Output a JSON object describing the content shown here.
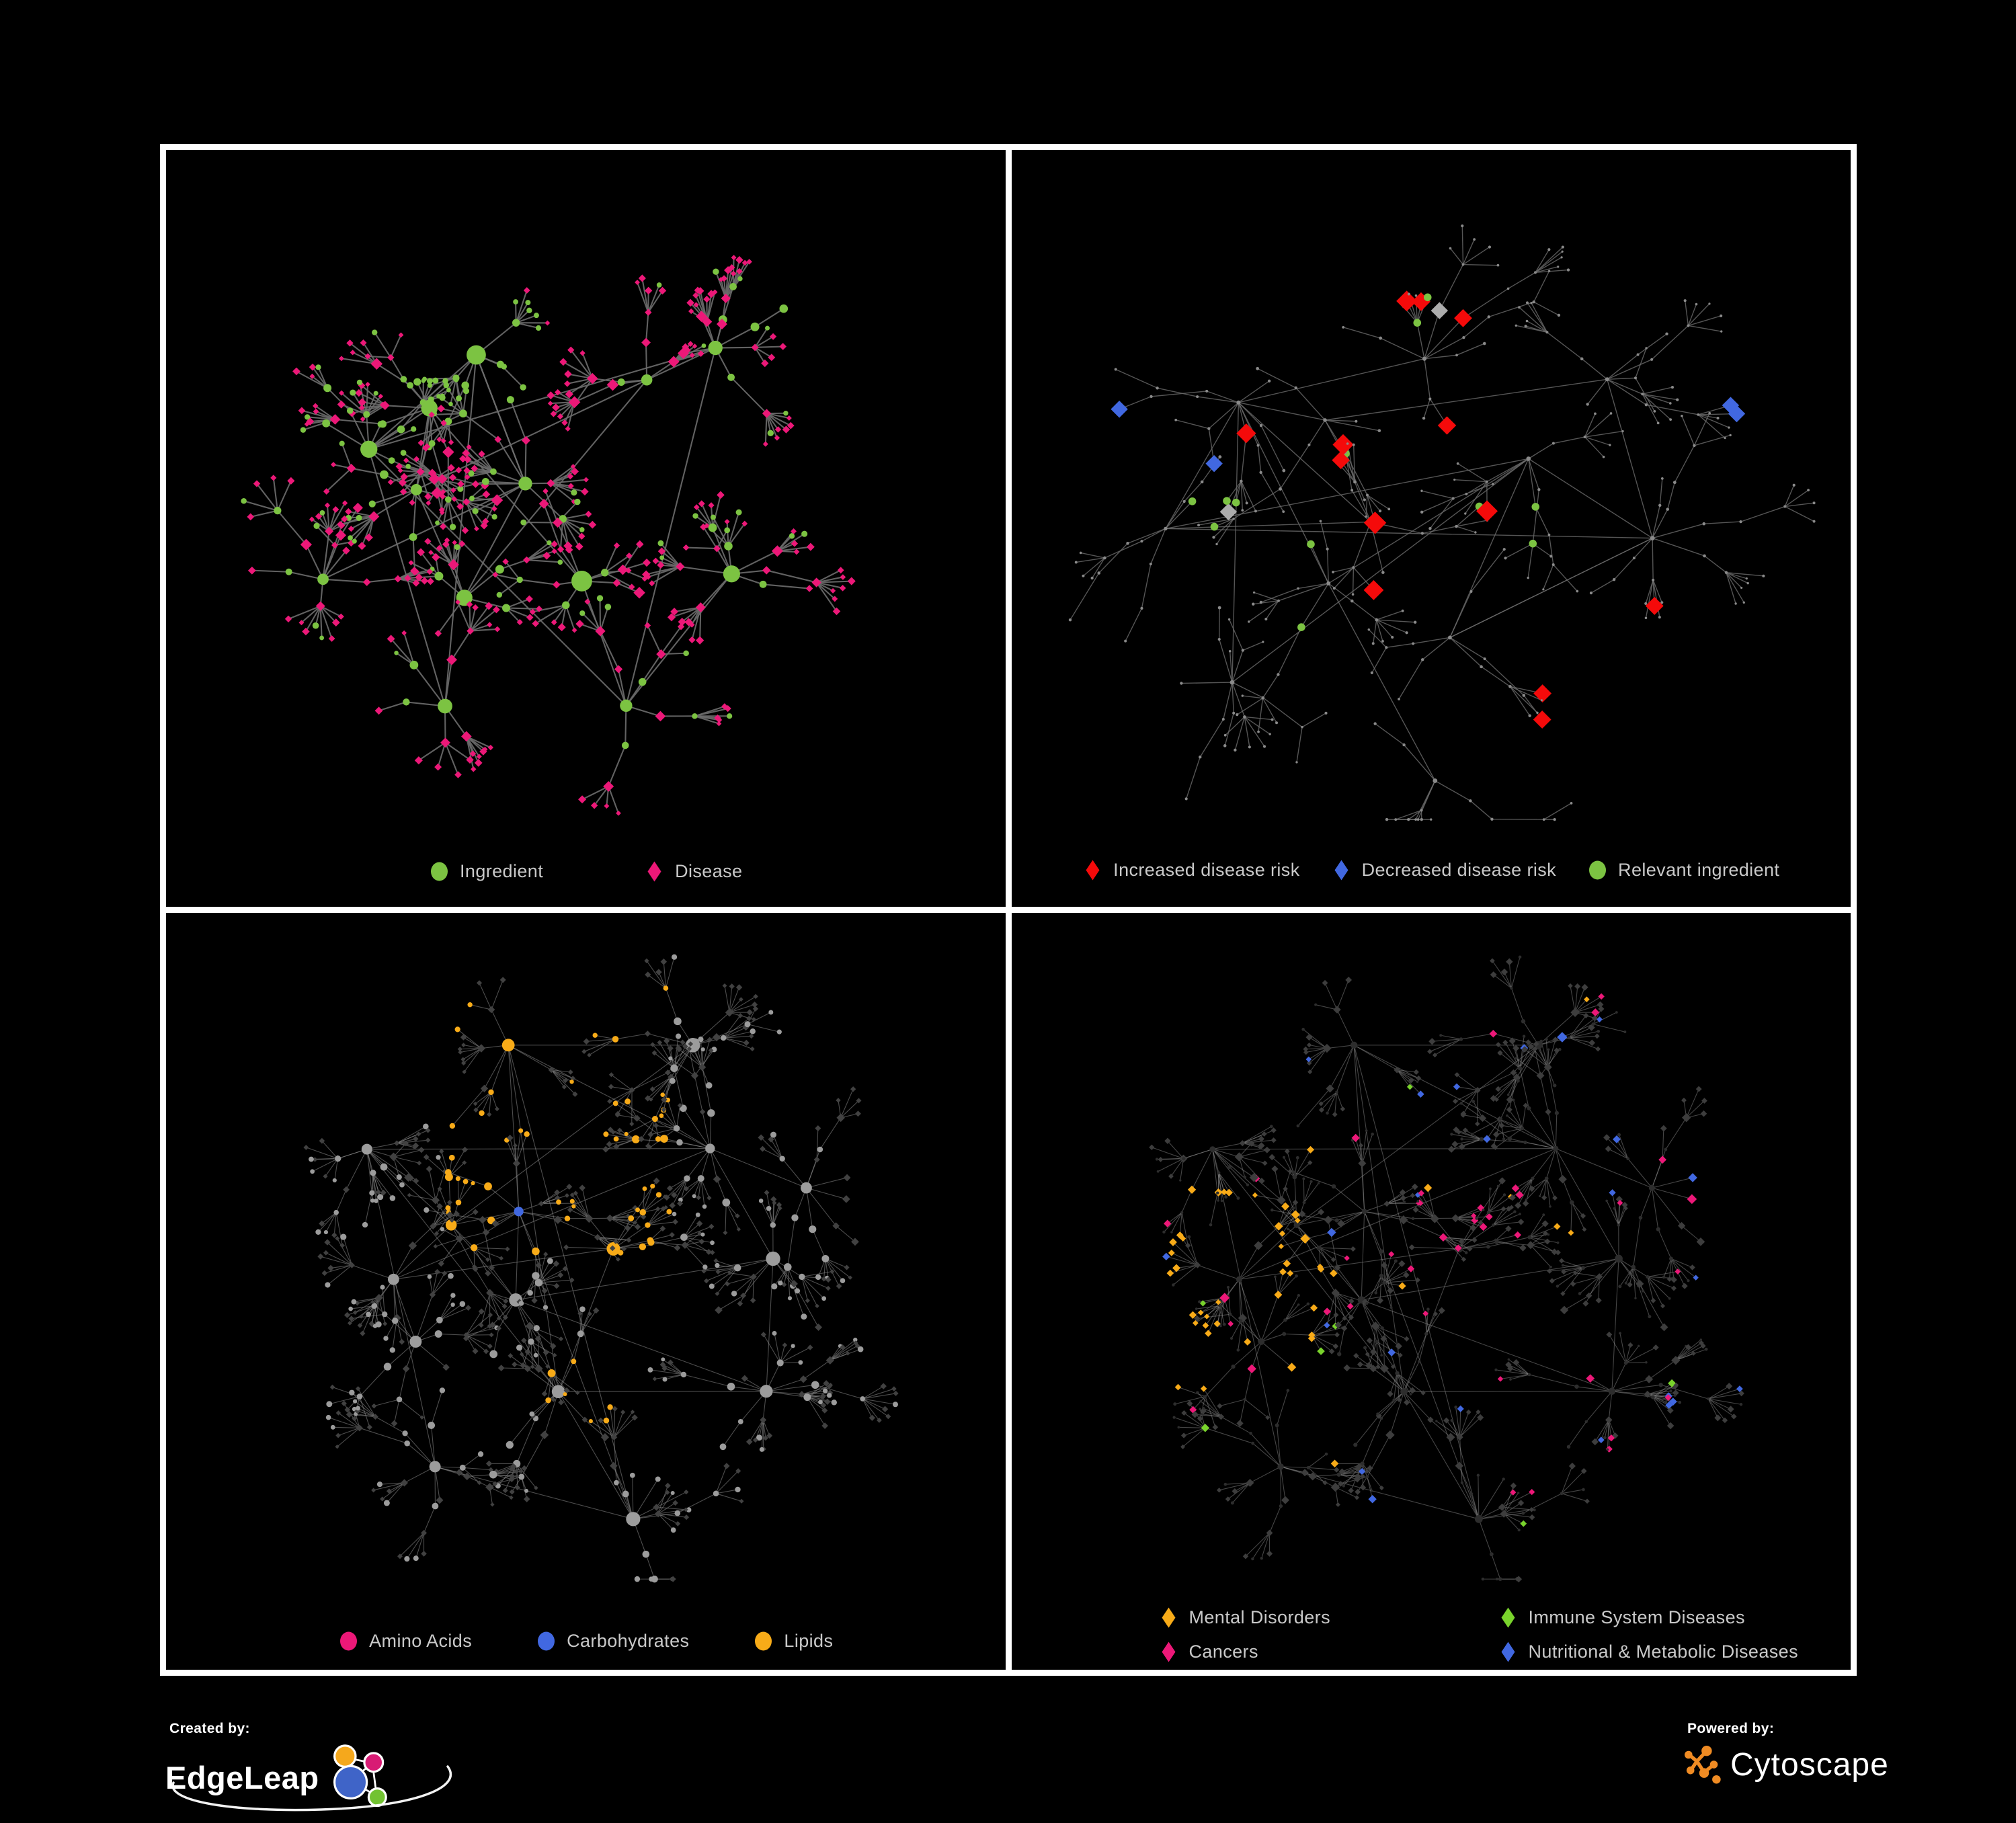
{
  "figure": {
    "background": "#000000",
    "frame_color": "#ffffff",
    "panel_background": "#000000",
    "legend_text_color": "#c9c9c9"
  },
  "panels": [
    {
      "id": "ingredient-disease-network",
      "type": "network",
      "legend": [
        {
          "label": "Ingredient",
          "shape": "circle",
          "color": "#7cc342"
        },
        {
          "label": "Disease",
          "shape": "diamond",
          "color": "#ec1878"
        }
      ]
    },
    {
      "id": "disease-risk-network",
      "type": "network",
      "legend": [
        {
          "label": "Increased disease risk",
          "shape": "diamond",
          "color": "#f50a0a"
        },
        {
          "label": "Decreased disease risk",
          "shape": "diamond",
          "color": "#4168e1"
        },
        {
          "label": "Relevant ingredient",
          "shape": "circle",
          "color": "#7cc342"
        }
      ]
    },
    {
      "id": "macronutrient-network",
      "type": "network",
      "legend": [
        {
          "label": "Amino Acids",
          "shape": "circle",
          "color": "#ec1878"
        },
        {
          "label": "Carbohydrates",
          "shape": "circle",
          "color": "#4168e1"
        },
        {
          "label": "Lipids",
          "shape": "circle",
          "color": "#f8ab18"
        }
      ]
    },
    {
      "id": "disease-category-network",
      "type": "network",
      "legend": [
        {
          "label": "Mental Disorders",
          "shape": "diamond",
          "color": "#f8ab18"
        },
        {
          "label": "Immune System Diseases",
          "shape": "diamond",
          "color": "#79d32c"
        },
        {
          "label": "Cancers",
          "shape": "diamond",
          "color": "#ec1878"
        },
        {
          "label": "Nutritional & Metabolic Diseases",
          "shape": "diamond",
          "color": "#4168e1"
        }
      ]
    }
  ],
  "network_styles": {
    "p1": {
      "edge": "#6d6d6d",
      "edge_width": 2.1,
      "edge_opacity": 0.9,
      "ingredient": "#7cc342",
      "disease": "#ec1878"
    },
    "p2": {
      "edge": "#6a6a6a",
      "edge_width": 1.4,
      "edge_opacity": 0.8,
      "dim_node": "#8a8a8a",
      "increased": "#f50a0a",
      "decreased": "#4168e1",
      "neutral": "#acacac",
      "relevant": "#7cc342"
    },
    "p3": {
      "edge": "#9a9a9a",
      "edge_width": 1.1,
      "edge_opacity": 0.5,
      "default_circle": "#9c9c9c",
      "dim_diamond": "#414141",
      "amino": "#ec1878",
      "carbo": "#4168e1",
      "lipid": "#f8ab18"
    },
    "p4": {
      "edge": "#9a9a9a",
      "edge_width": 1.1,
      "edge_opacity": 0.45,
      "dim_diamond": "#3d3d3d",
      "dim_circle": "#2d2d2d",
      "mental": "#f8ab18",
      "immune": "#79d32c",
      "cancer": "#ec1878",
      "nutritional": "#4168e1"
    }
  },
  "footer": {
    "created_by": "Created by:",
    "left_brand": "EdgeLeap",
    "powered_by": "Powered by:",
    "right_brand": "Cytoscape"
  }
}
